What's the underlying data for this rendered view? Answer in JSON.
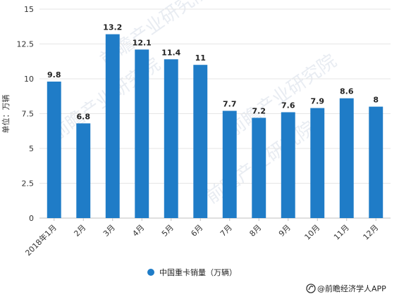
{
  "chart_data": {
    "type": "bar",
    "categories": [
      "2018年1月",
      "2月",
      "3月",
      "4月",
      "5月",
      "6月",
      "7月",
      "8月",
      "9月",
      "10月",
      "11月",
      "12月"
    ],
    "series": [
      {
        "name": "中国重卡销量（万辆）",
        "values": [
          9.8,
          6.8,
          13.2,
          12.1,
          11.4,
          11,
          7.7,
          7.2,
          7.6,
          7.9,
          8.6,
          8
        ],
        "labels": [
          "9.8",
          "6.8",
          "13.2",
          "12.1",
          "11.4",
          "11",
          "7.7",
          "7.2",
          "7.6",
          "7.9",
          "8.6",
          "8"
        ],
        "color": "#1f7cc7"
      }
    ],
    "title": "",
    "xlabel": "",
    "ylabel": "单位：万辆",
    "ylim": [
      0,
      15
    ],
    "yticks": [
      0,
      2.5,
      5,
      7.5,
      10,
      12.5,
      15
    ],
    "ytick_labels": [
      "0",
      "2.5",
      "5",
      "7.5",
      "10",
      "12.5",
      "15"
    ],
    "grid": true,
    "legend_position": "bottom-center"
  },
  "footer": {
    "source": "@前瞻经济学人APP"
  },
  "colors": {
    "bar": "#1f7cc7",
    "grid": "#e6e6e6",
    "axis": "#bfbfbf"
  },
  "icons": {
    "footer_logo": "qianzhan-logo-icon"
  },
  "watermark": {
    "text": "前瞻产业研究院"
  }
}
